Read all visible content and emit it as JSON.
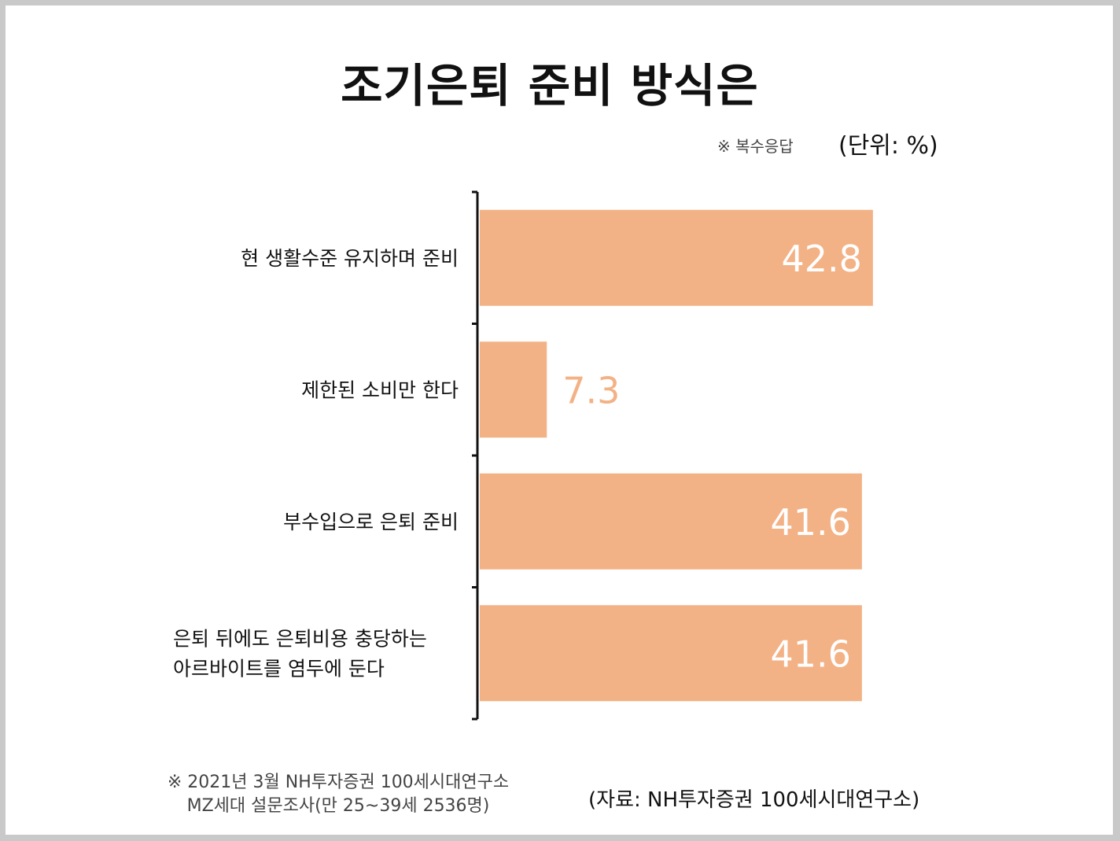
{
  "title": "조기은퇴 준비 방식은",
  "notes": {
    "multiple_response": "※ 복수응답",
    "unit": "(단위: %)"
  },
  "footnote": {
    "line1": "※ 2021년 3월 NH투자증권 100세시대연구소",
    "line2": "MZ세대 설문조사(만 25~39세 2536명)"
  },
  "source": "(자료: NH투자증권 100세시대연구소)",
  "colors": {
    "bar": "#f3b286",
    "label_inside": "#ffffff",
    "label_outside": "#f3b286",
    "axis": "#111111"
  },
  "chart_data": {
    "type": "bar",
    "orientation": "horizontal",
    "categories": [
      [
        "현 생활수준 유지하며 준비"
      ],
      [
        "제한된 소비만 한다"
      ],
      [
        "부수입으로 은퇴 준비"
      ],
      [
        "은퇴 뒤에도 은퇴비용 충당하는",
        "아르바이트를 염두에 둔다"
      ]
    ],
    "values": [
      42.8,
      7.3,
      41.6,
      41.6
    ],
    "value_labels": [
      "42.8",
      "7.3",
      "41.6",
      "41.6"
    ],
    "xlim": [
      0,
      50
    ],
    "grid": false,
    "legend": "none"
  }
}
